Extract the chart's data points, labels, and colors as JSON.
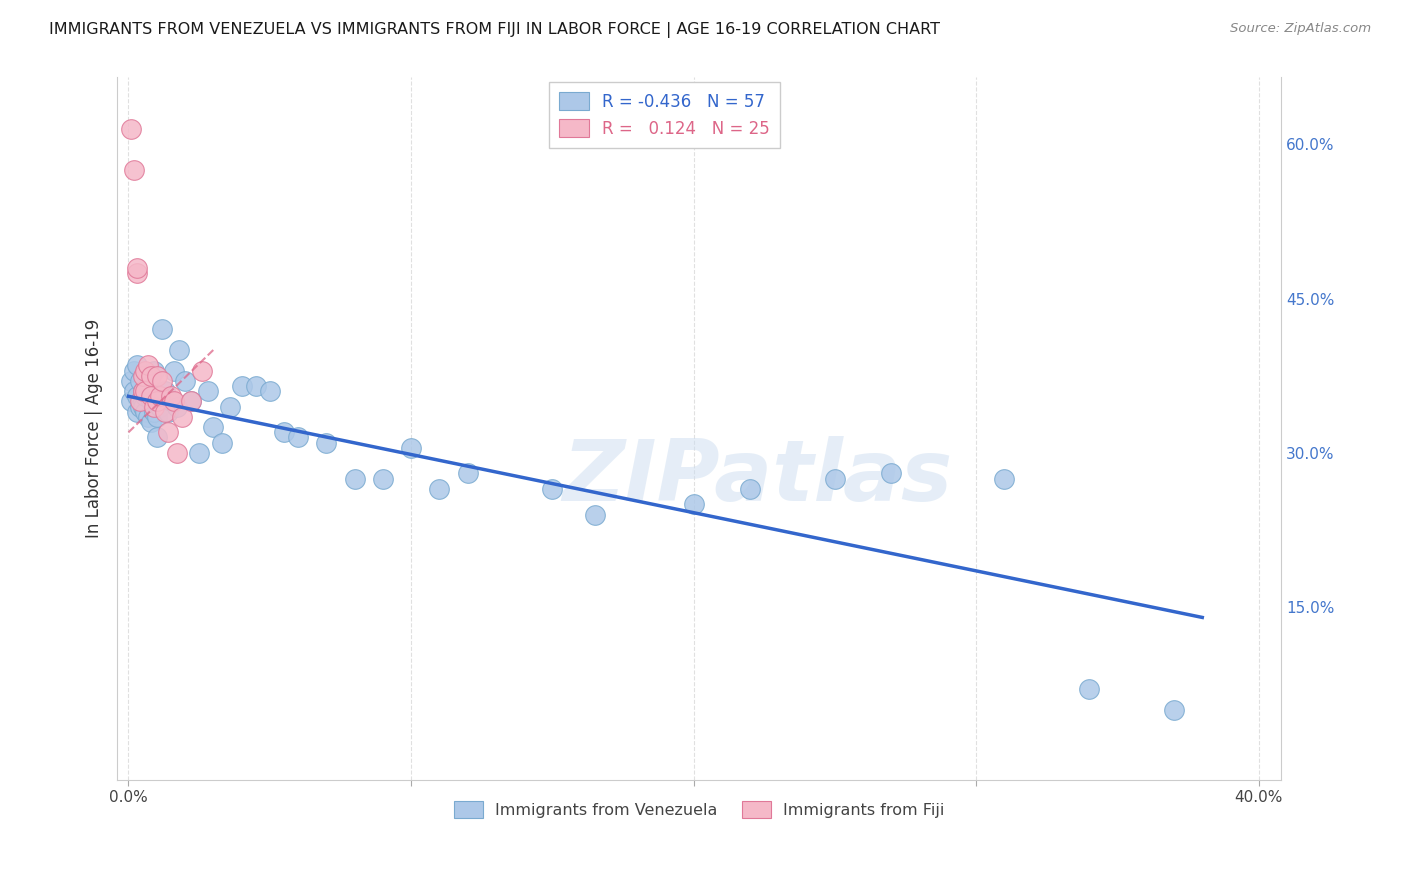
{
  "title": "IMMIGRANTS FROM VENEZUELA VS IMMIGRANTS FROM FIJI IN LABOR FORCE | AGE 16-19 CORRELATION CHART",
  "source": "Source: ZipAtlas.com",
  "ylabel_label": "In Labor Force | Age 16-19",
  "venezuela_color": "#adc8e8",
  "fiji_color": "#f5b8c8",
  "venezuela_edge_color": "#7aaad0",
  "fiji_edge_color": "#e07898",
  "trend_venezuela_color": "#3366cc",
  "trend_fiji_color": "#dd6688",
  "legend_R_venezuela": "-0.436",
  "legend_N_venezuela": "57",
  "legend_R_fiji": "0.124",
  "legend_N_fiji": "25",
  "watermark": "ZIPatlas",
  "xlim": [
    0.0,
    0.4
  ],
  "ylim": [
    0.0,
    0.65
  ],
  "venezuela_x": [
    0.001,
    0.001,
    0.002,
    0.002,
    0.003,
    0.003,
    0.003,
    0.004,
    0.004,
    0.005,
    0.005,
    0.005,
    0.006,
    0.006,
    0.007,
    0.007,
    0.008,
    0.008,
    0.009,
    0.009,
    0.01,
    0.01,
    0.011,
    0.012,
    0.013,
    0.014,
    0.015,
    0.016,
    0.017,
    0.018,
    0.02,
    0.022,
    0.025,
    0.028,
    0.03,
    0.033,
    0.036,
    0.04,
    0.045,
    0.05,
    0.055,
    0.06,
    0.07,
    0.08,
    0.09,
    0.1,
    0.11,
    0.12,
    0.15,
    0.165,
    0.2,
    0.22,
    0.25,
    0.27,
    0.31,
    0.34,
    0.37
  ],
  "venezuela_y": [
    0.37,
    0.35,
    0.38,
    0.36,
    0.385,
    0.355,
    0.34,
    0.37,
    0.345,
    0.36,
    0.35,
    0.345,
    0.34,
    0.355,
    0.335,
    0.365,
    0.35,
    0.33,
    0.34,
    0.38,
    0.315,
    0.335,
    0.345,
    0.42,
    0.36,
    0.34,
    0.35,
    0.38,
    0.345,
    0.4,
    0.37,
    0.35,
    0.3,
    0.36,
    0.325,
    0.31,
    0.345,
    0.365,
    0.365,
    0.36,
    0.32,
    0.315,
    0.31,
    0.275,
    0.275,
    0.305,
    0.265,
    0.28,
    0.265,
    0.24,
    0.25,
    0.265,
    0.275,
    0.28,
    0.275,
    0.07,
    0.05
  ],
  "fiji_x": [
    0.001,
    0.002,
    0.003,
    0.003,
    0.004,
    0.005,
    0.005,
    0.006,
    0.006,
    0.007,
    0.008,
    0.008,
    0.009,
    0.01,
    0.01,
    0.011,
    0.012,
    0.013,
    0.014,
    0.015,
    0.016,
    0.017,
    0.019,
    0.022,
    0.026
  ],
  "fiji_y": [
    0.615,
    0.575,
    0.475,
    0.48,
    0.35,
    0.36,
    0.375,
    0.38,
    0.36,
    0.385,
    0.375,
    0.355,
    0.345,
    0.35,
    0.375,
    0.355,
    0.37,
    0.34,
    0.32,
    0.355,
    0.35,
    0.3,
    0.335,
    0.35,
    0.38
  ],
  "trend_v_x0": 0.0,
  "trend_v_x1": 0.38,
  "trend_v_y0": 0.355,
  "trend_v_y1": 0.14,
  "trend_f_x0": 0.0,
  "trend_f_x1": 0.03,
  "trend_f_y0": 0.32,
  "trend_f_y1": 0.4
}
